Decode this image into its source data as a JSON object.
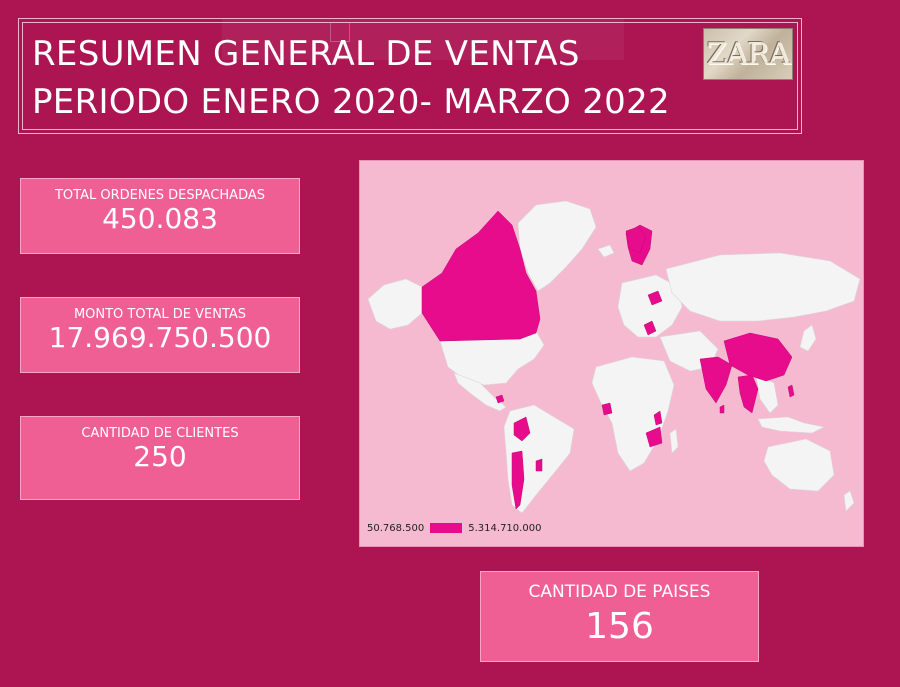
{
  "header": {
    "title_line1": "RESUMEN GENERAL DE VENTAS",
    "title_line2": "PERIODO ENERO 2020- MARZO 2022",
    "logo_text": "ZARA"
  },
  "kpis": {
    "orders": {
      "label": "TOTAL ORDENES DESPACHADAS",
      "value": "450.083"
    },
    "sales": {
      "label": "MONTO TOTAL DE VENTAS",
      "value": "17.969.750.500"
    },
    "clients": {
      "label": "CANTIDAD DE CLIENTES",
      "value": "250"
    },
    "countries": {
      "label": "CANTIDAD DE PAISES",
      "value": "156"
    }
  },
  "map": {
    "legend_min": "50.768.500",
    "legend_max": "5.314.710.000",
    "colors": {
      "background": "#f6bad0",
      "land": "#f4f4f4",
      "highlight": "#e70c8c"
    }
  }
}
